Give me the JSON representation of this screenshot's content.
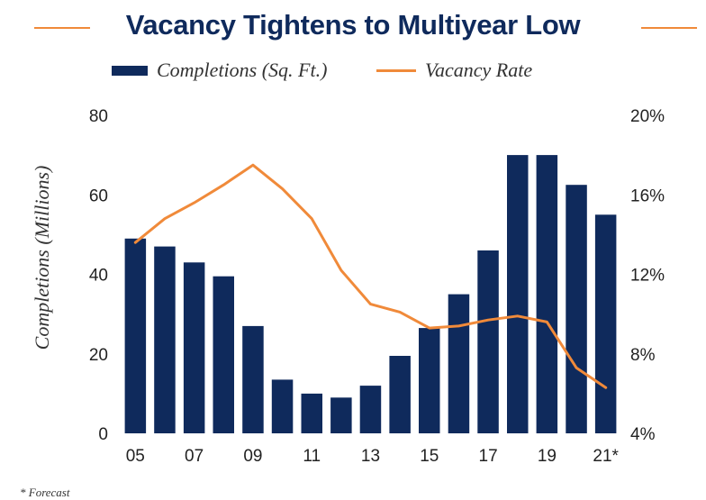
{
  "colors": {
    "bar": "#0f2a5c",
    "line": "#f08a3a",
    "title": "#0f2a5c",
    "text": "#222222"
  },
  "chart_data": {
    "type": "bar",
    "title": "Vacancy Tightens to Multiyear Low",
    "legend": {
      "bar_label": "Completions (Sq. Ft.)",
      "line_label": "Vacancy Rate",
      "placement": "top"
    },
    "ylabel": "Completions (Millions)",
    "ylim": [
      0,
      80
    ],
    "y_ticks": [
      "0",
      "20",
      "40",
      "60",
      "80"
    ],
    "y2lim": [
      4,
      20
    ],
    "y2_ticks": [
      "4%",
      "8%",
      "12%",
      "16%",
      "20%"
    ],
    "categories": [
      "2005",
      "2006",
      "2007",
      "2008",
      "2009",
      "2010",
      "2011",
      "2012",
      "2013",
      "2014",
      "2015",
      "2016",
      "2017",
      "2018",
      "2019",
      "2020",
      "2021*"
    ],
    "x_tick_labels": [
      "05",
      "",
      "07",
      "",
      "09",
      "",
      "11",
      "",
      "13",
      "",
      "15",
      "",
      "17",
      "",
      "19",
      "",
      "21*"
    ],
    "series": [
      {
        "name": "Completions (Sq. Ft.)",
        "type": "bar",
        "axis": "left",
        "values": [
          49,
          47,
          43,
          39.5,
          27,
          13.5,
          10,
          9,
          12,
          19.5,
          26.5,
          35,
          46,
          70,
          70,
          62.5,
          55
        ]
      },
      {
        "name": "Vacancy Rate",
        "type": "line",
        "axis": "right",
        "values": [
          13.6,
          14.8,
          15.6,
          16.5,
          17.5,
          16.3,
          14.8,
          12.2,
          10.5,
          10.1,
          9.3,
          9.4,
          9.7,
          9.9,
          9.6,
          7.3,
          6.3
        ]
      }
    ],
    "grid": false,
    "footnote": "* Forecast"
  }
}
